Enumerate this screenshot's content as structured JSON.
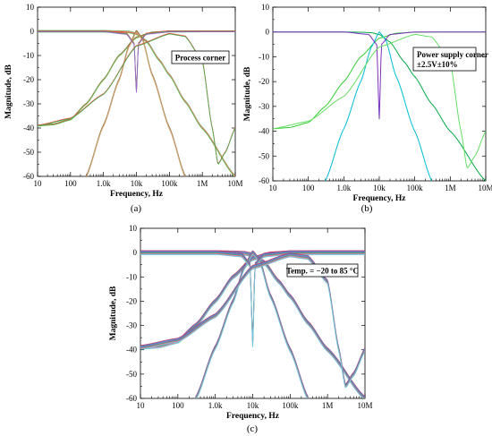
{
  "figure": {
    "panels": [
      {
        "label": "(a)",
        "annotation_lines": [
          "Process corner"
        ]
      },
      {
        "label": "(b)",
        "annotation_lines": [
          "Power supply corner",
          "±2.5V±10%"
        ]
      },
      {
        "label": "(c)",
        "annotation_lines": [
          "Temp. = −20 to 85 °C"
        ]
      }
    ]
  },
  "chart_data": [
    {
      "type": "line",
      "panel": "(a)",
      "xlabel": "Frequency, Hz",
      "ylabel": "Magnitude, dB",
      "xscale": "log",
      "xlim": [
        10,
        10000000
      ],
      "ylim": [
        -60,
        10
      ],
      "x_ticks": [
        10,
        100,
        1000,
        10000,
        100000,
        1000000,
        10000000
      ],
      "x_tick_labels": [
        "10",
        "100",
        "1.0k",
        "10k",
        "100k",
        "1M",
        "10M"
      ],
      "y_ticks": [
        10,
        0,
        -10,
        -20,
        -30,
        -40,
        -50,
        -60
      ],
      "y_tick_labels": [
        "10",
        "0",
        "-10",
        "-20",
        "-30",
        "-40",
        "-50",
        "-60"
      ],
      "grid": false,
      "annotation": "Process corner",
      "series": [
        {
          "filter": "low-pass",
          "colors": [
            "#4caf50",
            "#ff9999",
            "#ff3333",
            "#66cc66"
          ],
          "x": [
            10,
            30,
            100,
            300,
            1000,
            3000,
            6000,
            10000,
            20000,
            50000,
            100000,
            300000,
            1000000,
            10000000
          ],
          "y": [
            0,
            0,
            0,
            0,
            0,
            -0.1,
            -0.3,
            -1,
            -4,
            -12,
            -18,
            -29,
            -40,
            -60
          ]
        },
        {
          "filter": "high-pass",
          "colors": [
            "#4caf50",
            "#ff3333",
            "#66cc66"
          ],
          "x": [
            10,
            30,
            100,
            300,
            1000,
            3000,
            10000,
            30000,
            100000,
            1000000,
            10000000
          ],
          "y": [
            -39,
            -38.5,
            -36.5,
            -30,
            -20,
            -10,
            -2.5,
            -0.5,
            -0.1,
            0,
            0
          ]
        },
        {
          "filter": "band-pass",
          "colors": [
            "#8b4513",
            "#4caf50",
            "#ff6666",
            "#ccaa77"
          ],
          "x": [
            300,
            1000,
            3000,
            6000,
            10000,
            15000,
            30000,
            100000,
            300000
          ],
          "y": [
            -60,
            -39,
            -20,
            -6,
            0,
            -3,
            -18,
            -40,
            -60
          ]
        },
        {
          "filter": "notch",
          "colors": [
            "#ff3333",
            "#4caf50",
            "#9966cc"
          ],
          "x": [
            10,
            1000,
            5000,
            8500,
            10000,
            11500,
            20000,
            100000,
            10000000
          ],
          "y": [
            0,
            0,
            -1,
            -5,
            -25,
            -5,
            -1,
            0,
            0
          ]
        },
        {
          "filter": "band-reject",
          "colors": [
            "#ff3333",
            "#4caf50"
          ],
          "x": [
            10,
            100,
            1000,
            10000,
            100000,
            300000,
            1000000,
            2000000,
            3000000,
            5000000,
            10000000
          ],
          "y": [
            -39,
            -36,
            -26,
            -6,
            -1,
            -2,
            -12,
            -40,
            -55,
            -50,
            -40
          ]
        }
      ]
    },
    {
      "type": "line",
      "panel": "(b)",
      "xlabel": "Frequency, Hz",
      "ylabel": "Magnitude, dB",
      "xscale": "log",
      "xlim": [
        10,
        10000000
      ],
      "ylim": [
        -60,
        10
      ],
      "x_ticks": [
        10,
        100,
        1000,
        10000,
        100000,
        1000000,
        10000000
      ],
      "x_tick_labels": [
        "10",
        "100",
        "1.0k",
        "10k",
        "100k",
        "1M",
        "10M"
      ],
      "y_ticks": [
        10,
        0,
        -10,
        -20,
        -30,
        -40,
        -50,
        -60
      ],
      "y_tick_labels": [
        "10",
        "0",
        "-10",
        "-20",
        "-30",
        "-40",
        "-50",
        "-60"
      ],
      "grid": false,
      "annotation": "Power supply corner ±2.5V±10%",
      "series": [
        {
          "filter": "low-pass",
          "colors": [
            "#00aa44"
          ],
          "x": [
            10,
            30,
            100,
            300,
            1000,
            3000,
            6000,
            10000,
            20000,
            50000,
            100000,
            300000,
            1000000,
            10000000
          ],
          "y": [
            0,
            0,
            0,
            0,
            0,
            -0.1,
            -0.3,
            -1,
            -4,
            -12,
            -18,
            -29,
            -40,
            -60
          ]
        },
        {
          "filter": "high-pass",
          "colors": [
            "#33cc33"
          ],
          "x": [
            10,
            30,
            100,
            300,
            1000,
            3000,
            10000,
            30000,
            100000,
            1000000,
            10000000
          ],
          "y": [
            -39,
            -38.5,
            -36.5,
            -30,
            -20,
            -10,
            -2.5,
            -0.5,
            -0.1,
            0,
            0
          ]
        },
        {
          "filter": "band-pass",
          "colors": [
            "#00bcd4"
          ],
          "x": [
            300,
            1000,
            3000,
            6000,
            10000,
            15000,
            30000,
            100000,
            300000
          ],
          "y": [
            -60,
            -39,
            -20,
            -6,
            0,
            -3,
            -18,
            -40,
            -60
          ]
        },
        {
          "filter": "notch",
          "colors": [
            "#7b2fbe"
          ],
          "x": [
            10,
            1000,
            5000,
            8500,
            10000,
            11500,
            20000,
            100000,
            10000000
          ],
          "y": [
            0,
            0,
            -1,
            -5,
            -35,
            -5,
            -1,
            0,
            0
          ]
        },
        {
          "filter": "band-reject",
          "colors": [
            "#66dd66"
          ],
          "x": [
            10,
            100,
            1000,
            10000,
            100000,
            300000,
            1000000,
            2000000,
            3000000,
            5000000,
            10000000
          ],
          "y": [
            -39,
            -36,
            -26,
            -6,
            -1,
            -2,
            -12,
            -40,
            -55,
            -50,
            -40
          ]
        }
      ]
    },
    {
      "type": "line",
      "panel": "(c)",
      "xlabel": "Frequency, Hz",
      "ylabel": "Magnitude, dB",
      "xscale": "log",
      "xlim": [
        10,
        10000000
      ],
      "ylim": [
        -60,
        10
      ],
      "x_ticks": [
        10,
        100,
        1000,
        10000,
        100000,
        1000000,
        10000000
      ],
      "x_tick_labels": [
        "10",
        "100",
        "1.0k",
        "10k",
        "100k",
        "1M",
        "10M"
      ],
      "y_ticks": [
        10,
        0,
        -10,
        -20,
        -30,
        -40,
        -50,
        -60
      ],
      "y_tick_labels": [
        "10",
        "0",
        "-10",
        "-20",
        "-30",
        "-40",
        "-50",
        "-60"
      ],
      "grid": false,
      "annotation": "Temp. = −20 to 85 °C",
      "series": [
        {
          "filter": "low-pass",
          "colors": [
            "#cc3366",
            "#3399cc",
            "#9966cc",
            "#33aa66",
            "#ff6699",
            "#66ccdd"
          ],
          "x": [
            10,
            30,
            100,
            300,
            1000,
            3000,
            6000,
            10000,
            20000,
            50000,
            100000,
            300000,
            1000000,
            10000000
          ],
          "y": [
            0,
            0,
            0,
            0,
            0,
            -0.1,
            -0.3,
            -1,
            -4,
            -12,
            -18,
            -29,
            -40,
            -60
          ]
        },
        {
          "filter": "high-pass",
          "colors": [
            "#cc3366",
            "#3399cc",
            "#9966cc",
            "#33aa66",
            "#ff6699",
            "#66ccdd"
          ],
          "x": [
            10,
            30,
            100,
            300,
            1000,
            3000,
            10000,
            30000,
            100000,
            1000000,
            10000000
          ],
          "y": [
            -39,
            -38.5,
            -36.5,
            -30,
            -20,
            -10,
            -2.5,
            -0.5,
            -0.1,
            0,
            0
          ]
        },
        {
          "filter": "band-pass",
          "colors": [
            "#cc3366",
            "#3399cc",
            "#9966cc",
            "#33aa66",
            "#ff6699",
            "#66ccdd"
          ],
          "x": [
            300,
            1000,
            3000,
            6000,
            10000,
            15000,
            30000,
            100000,
            300000
          ],
          "y": [
            -60,
            -39,
            -20,
            -6,
            0,
            -3,
            -18,
            -40,
            -60
          ]
        },
        {
          "filter": "notch",
          "colors": [
            "#cc3366",
            "#3399cc",
            "#9966cc",
            "#33aa66",
            "#ff6699",
            "#66ccdd"
          ],
          "x": [
            10,
            1000,
            5000,
            8500,
            10000,
            11500,
            20000,
            100000,
            10000000
          ],
          "y": [
            0,
            0,
            -1,
            -5,
            -38,
            -5,
            -1,
            0,
            0
          ]
        },
        {
          "filter": "band-reject",
          "colors": [
            "#cc3366",
            "#3399cc",
            "#9966cc",
            "#33aa66",
            "#ff6699",
            "#66ccdd"
          ],
          "x": [
            10,
            100,
            1000,
            10000,
            100000,
            300000,
            1000000,
            2000000,
            3000000,
            5000000,
            10000000
          ],
          "y": [
            -39,
            -36,
            -26,
            -6,
            -1,
            -2,
            -12,
            -40,
            -55,
            -50,
            -40
          ]
        }
      ]
    }
  ]
}
